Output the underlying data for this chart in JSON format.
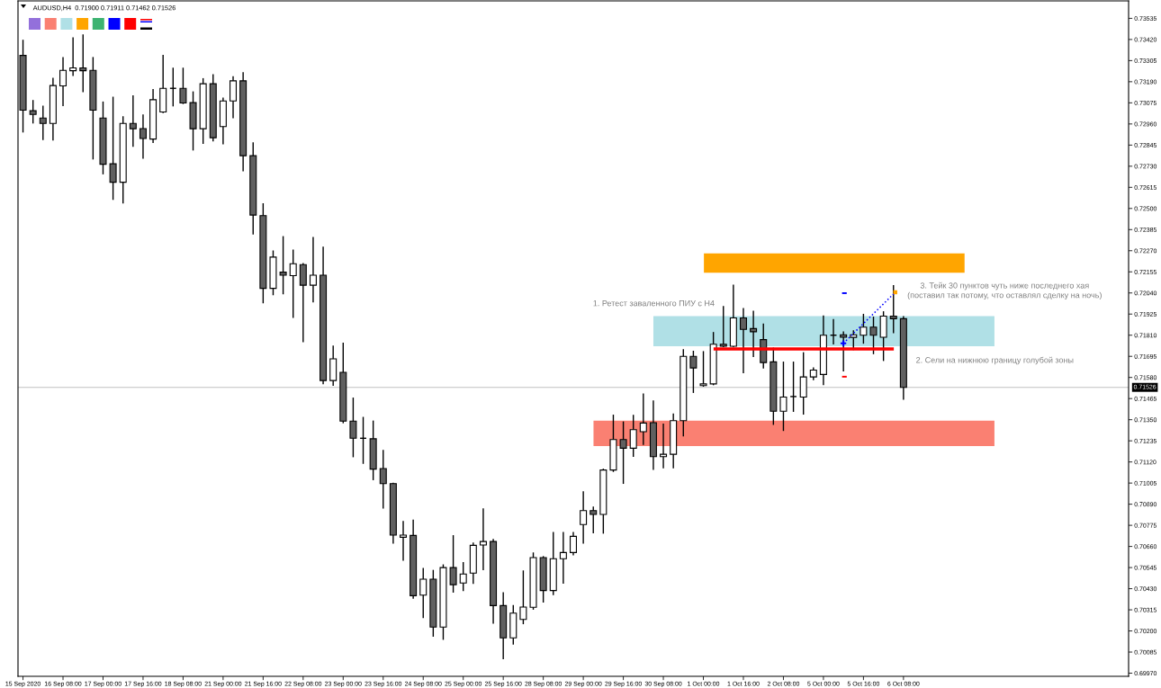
{
  "chart_data": {
    "type": "candlestick",
    "title": "AUDUSD,H4  0.71900 0.71911 0.71462 0.71526",
    "categories": [
      "15 Sep 2020",
      null,
      null,
      null,
      "16 Sep 08:00",
      null,
      null,
      null,
      "17 Sep 00:00",
      null,
      null,
      null,
      "17 Sep 16:00",
      null,
      null,
      null,
      "18 Sep 08:00",
      null,
      null,
      null,
      "21 Sep 00:00",
      null,
      null,
      null,
      "21 Sep 16:00",
      null,
      null,
      null,
      "22 Sep 08:00",
      null,
      null,
      null,
      "23 Sep 00:00",
      null,
      null,
      null,
      "23 Sep 16:00",
      null,
      null,
      null,
      "24 Sep 08:00",
      null,
      null,
      null,
      "25 Sep 00:00",
      null,
      null,
      null,
      "25 Sep 16:00",
      null,
      null,
      null,
      "28 Sep 08:00",
      null,
      null,
      null,
      "29 Sep 00:00",
      null,
      null,
      null,
      "29 Sep 16:00",
      null,
      null,
      null,
      "30 Sep 08:00",
      null,
      null,
      null,
      "1 Oct 00:00",
      null,
      null,
      null,
      "1 Oct 16:00",
      null,
      null,
      null,
      "2 Oct 08:00",
      null,
      null,
      null,
      "5 Oct 00:00",
      null,
      null,
      null,
      "5 Oct 16:00",
      null,
      null,
      null,
      "6 Oct 08:00",
      null,
      null,
      null,
      null,
      null,
      null,
      null,
      null,
      null,
      null,
      null,
      null,
      null,
      null,
      null,
      null,
      null,
      null,
      null,
      null,
      null,
      null
    ],
    "ohlc": [
      [
        0.73333,
        0.73415,
        0.72917,
        0.73035
      ],
      [
        0.73032,
        0.73087,
        0.72966,
        0.73012
      ],
      [
        0.72992,
        0.73056,
        0.72876,
        0.72963
      ],
      [
        0.72963,
        0.73208,
        0.72873,
        0.73169
      ],
      [
        0.73167,
        0.73321,
        0.73061,
        0.73252
      ],
      [
        0.7325,
        0.73428,
        0.73224,
        0.73265
      ],
      [
        0.73265,
        0.73444,
        0.73137,
        0.7325
      ],
      [
        0.73252,
        0.73321,
        0.7277,
        0.73035
      ],
      [
        0.72992,
        0.73079,
        0.72689,
        0.72741
      ],
      [
        0.72743,
        0.73105,
        0.7255,
        0.72643
      ],
      [
        0.72643,
        0.72999,
        0.7253,
        0.72963
      ],
      [
        0.72963,
        0.73113,
        0.72839,
        0.72934
      ],
      [
        0.72935,
        0.73009,
        0.72774,
        0.72881
      ],
      [
        0.72878,
        0.73147,
        0.7286,
        0.73092
      ],
      [
        0.73025,
        0.73333,
        0.73022,
        0.73154
      ],
      [
        0.73154,
        0.73263,
        0.73059,
        0.73154
      ],
      [
        0.73154,
        0.73263,
        0.73072,
        0.73074
      ],
      [
        0.73076,
        0.73134,
        0.72819,
        0.72934
      ],
      [
        0.72934,
        0.73206,
        0.72855,
        0.73179
      ],
      [
        0.73179,
        0.73228,
        0.72868,
        0.72885
      ],
      [
        0.72946,
        0.731,
        0.72852,
        0.73085
      ],
      [
        0.73085,
        0.73216,
        0.72995,
        0.73195
      ],
      [
        0.73195,
        0.73239,
        0.72705,
        0.72787
      ],
      [
        0.72787,
        0.72857,
        0.72362,
        0.72464
      ],
      [
        0.72461,
        0.72525,
        0.71987,
        0.72065
      ],
      [
        0.72065,
        0.72268,
        0.72031,
        0.72235
      ],
      [
        0.72153,
        0.72346,
        0.72036,
        0.72137
      ],
      [
        0.72134,
        0.72273,
        0.71908,
        0.72199
      ],
      [
        0.72194,
        0.72199,
        0.71775,
        0.72082
      ],
      [
        0.72082,
        0.72341,
        0.71992,
        0.72137
      ],
      [
        0.72137,
        0.72289,
        0.71546,
        0.71563
      ],
      [
        0.71563,
        0.7175,
        0.71538,
        0.71681
      ],
      [
        0.71608,
        0.71766,
        0.71334,
        0.71342
      ],
      [
        0.71342,
        0.71467,
        0.71149,
        0.71249
      ],
      [
        0.71249,
        0.71362,
        0.71113,
        0.71249
      ],
      [
        0.71246,
        0.71342,
        0.71024,
        0.71081
      ],
      [
        0.71084,
        0.71182,
        0.70869,
        0.71002
      ],
      [
        0.71002,
        0.71004,
        0.70678,
        0.70722
      ],
      [
        0.7071,
        0.70795,
        0.70586,
        0.70722
      ],
      [
        0.7072,
        0.70803,
        0.70379,
        0.70392
      ],
      [
        0.70395,
        0.70539,
        0.70273,
        0.70482
      ],
      [
        0.70482,
        0.70529,
        0.70172,
        0.70221
      ],
      [
        0.70221,
        0.70559,
        0.70155,
        0.70545
      ],
      [
        0.70545,
        0.70718,
        0.70412,
        0.70452
      ],
      [
        0.70461,
        0.70571,
        0.7042,
        0.7051
      ],
      [
        0.70515,
        0.70678,
        0.70459,
        0.70666
      ],
      [
        0.70668,
        0.70864,
        0.70534,
        0.70687
      ],
      [
        0.70687,
        0.70697,
        0.70243,
        0.70338
      ],
      [
        0.70338,
        0.70407,
        0.70049,
        0.70162
      ],
      [
        0.70162,
        0.70338,
        0.70129,
        0.70297
      ],
      [
        0.70263,
        0.70526,
        0.7024,
        0.7033
      ],
      [
        0.70329,
        0.70624,
        0.70319,
        0.70599
      ],
      [
        0.70599,
        0.70604,
        0.70358,
        0.7042
      ],
      [
        0.7042,
        0.70735,
        0.70398,
        0.70593
      ],
      [
        0.70593,
        0.70735,
        0.70461,
        0.70627
      ],
      [
        0.70627,
        0.70735,
        0.70615,
        0.70715
      ],
      [
        0.70779,
        0.70957,
        0.70678,
        0.70855
      ],
      [
        0.70855,
        0.70874,
        0.70735,
        0.70834
      ],
      [
        0.70834,
        0.7108,
        0.70733,
        0.71076
      ],
      [
        0.71076,
        0.71374,
        0.71069,
        0.71242
      ],
      [
        0.71242,
        0.71337,
        0.71004,
        0.71195
      ],
      [
        0.71195,
        0.71373,
        0.71151,
        0.71296
      ],
      [
        0.71285,
        0.71489,
        0.71216,
        0.71332
      ],
      [
        0.71334,
        0.71452,
        0.7108,
        0.71149
      ],
      [
        0.71149,
        0.71325,
        0.71089,
        0.71162
      ],
      [
        0.71162,
        0.71381,
        0.71089,
        0.71345
      ],
      [
        0.71345,
        0.7173,
        0.71262,
        0.71695
      ],
      [
        0.71695,
        0.71722,
        0.71499,
        0.71632
      ],
      [
        0.71536,
        0.7172,
        0.71533,
        0.71545
      ],
      [
        0.71545,
        0.71824,
        0.71541,
        0.71761
      ],
      [
        0.71761,
        0.71965,
        0.71748,
        0.7175
      ],
      [
        0.7175,
        0.72082,
        0.71748,
        0.71904
      ],
      [
        0.71904,
        0.71955,
        0.71607,
        0.71842
      ],
      [
        0.71846,
        0.7194,
        0.71695,
        0.71829
      ],
      [
        0.71786,
        0.7187,
        0.71632,
        0.71661
      ],
      [
        0.71665,
        0.71739,
        0.71325,
        0.71396
      ],
      [
        0.71396,
        0.71663,
        0.71292,
        0.71473
      ],
      [
        0.71476,
        0.71663,
        0.71396,
        0.71476
      ],
      [
        0.71473,
        0.71714,
        0.71381,
        0.71583
      ],
      [
        0.71583,
        0.71632,
        0.71569,
        0.7162
      ],
      [
        0.71596,
        0.71914,
        0.71541,
        0.7181
      ],
      [
        0.7181,
        0.71895,
        0.71763,
        0.7181
      ],
      [
        0.71812,
        0.71827,
        0.71616,
        0.71799
      ],
      [
        0.71798,
        0.71833,
        0.71733,
        0.71812
      ],
      [
        0.7181,
        0.71923,
        0.71767,
        0.71854
      ],
      [
        0.71854,
        0.71908,
        0.7171,
        0.7181
      ],
      [
        0.71799,
        0.71937,
        0.71673,
        0.71914
      ],
      [
        0.71914,
        0.7208,
        0.71824,
        0.719
      ],
      [
        0.719,
        0.71911,
        0.71462,
        0.71526
      ],
      null,
      null,
      null,
      null,
      null,
      null,
      null,
      null,
      null,
      null,
      null,
      null,
      null,
      null,
      null,
      null,
      null,
      null,
      null,
      null,
      null,
      null
    ],
    "colors": [
      "#606060",
      "#606060",
      "#606060",
      "#ffffff",
      "#ffffff",
      "#ffffff",
      "#606060",
      "#606060",
      "#606060",
      "#606060",
      "#ffffff",
      "#606060",
      "#606060",
      "#ffffff",
      "#ffffff",
      "#000000",
      "#606060",
      "#606060",
      "#ffffff",
      "#606060",
      "#ffffff",
      "#ffffff",
      "#606060",
      "#606060",
      "#606060",
      "#ffffff",
      "#606060",
      "#ffffff",
      "#606060",
      "#ffffff",
      "#606060",
      "#ffffff",
      "#606060",
      "#606060",
      "#000000",
      "#606060",
      "#606060",
      "#606060",
      "#ffffff",
      "#606060",
      "#ffffff",
      "#606060",
      "#ffffff",
      "#606060",
      "#ffffff",
      "#ffffff",
      "#ffffff",
      "#606060",
      "#606060",
      "#ffffff",
      "#ffffff",
      "#ffffff",
      "#606060",
      "#ffffff",
      "#ffffff",
      "#ffffff",
      "#ffffff",
      "#606060",
      "#ffffff",
      "#ffffff",
      "#606060",
      "#ffffff",
      "#ffffff",
      "#606060",
      "#ffffff",
      "#ffffff",
      "#ffffff",
      "#606060",
      "#ffffff",
      "#ffffff",
      "#606060",
      "#ffffff",
      "#606060",
      "#606060",
      "#606060",
      "#606060",
      "#ffffff",
      "#000000",
      "#ffffff",
      "#ffffff",
      "#ffffff",
      "#000000",
      "#606060",
      "#ffffff",
      "#ffffff",
      "#606060",
      "#ffffff",
      "#606060",
      "#606060",
      null,
      null,
      null,
      null,
      null,
      null,
      null,
      null,
      null,
      null,
      null,
      null,
      null,
      null,
      null,
      null,
      null,
      null,
      null,
      null,
      null,
      null
    ],
    "color": "#000000",
    "ylim": [
      0.69953,
      0.7363
    ],
    "yticks": [
      {
        "value": 0.6997,
        "label": "0.69970"
      },
      0.70085,
      {
        "value": 0.702,
        "label": "0.70200"
      },
      0.70315,
      {
        "value": 0.7043,
        "label": "0.70430"
      },
      0.70545,
      {
        "value": 0.7066,
        "label": "0.70660"
      },
      0.70775,
      {
        "value": 0.7089,
        "label": "0.70890"
      },
      0.71005,
      {
        "value": 0.7112,
        "label": "0.71120"
      },
      0.71235,
      {
        "value": 0.7135,
        "label": "0.71350"
      },
      0.71465,
      {
        "value": 0.7158,
        "label": "0.71580"
      },
      0.71695,
      {
        "value": 0.7181,
        "label": "0.71810"
      },
      0.71925,
      {
        "value": 0.7204,
        "label": "0.72040"
      },
      0.72155,
      {
        "value": 0.7227,
        "label": "0.72270"
      },
      0.72385,
      {
        "value": 0.725,
        "label": "0.72500"
      },
      0.72615,
      {
        "value": 0.7273,
        "label": "0.72730"
      },
      0.72845,
      {
        "value": 0.7296,
        "label": "0.72960"
      },
      0.73075,
      {
        "value": 0.7319,
        "label": "0.73190"
      },
      0.73305,
      {
        "value": 0.7342,
        "label": "0.73420"
      },
      0.73535
    ],
    "bands": [
      {
        "axis": "y",
        "from": 0.71206,
        "to": 0.71345,
        "color": "#fa8072"
      },
      {
        "axis": "y",
        "from": 0.7175,
        "to": 0.71914,
        "color": "#b0e0e6"
      },
      {
        "axis": "y",
        "from": 0.7215,
        "to": 0.72255,
        "color": "#ffa500"
      }
    ],
    "ref_lines": [
      {
        "axis": "y",
        "value": 0.71526,
        "label": "0.71526",
        "color": "#c0c0c0"
      },
      {
        "axis": "y",
        "value": 0.71735,
        "color": "#ff0000"
      }
    ],
    "annotations": [
      "1. Ретест заваленного ПИУ с H4",
      "3. Тейк 30 пунктов чуть ниже последнего хая\n(поставил так потому, что оставлял сделку на ночь)",
      "2. Сели на нижнюю границу голубой зоны"
    ]
  }
}
